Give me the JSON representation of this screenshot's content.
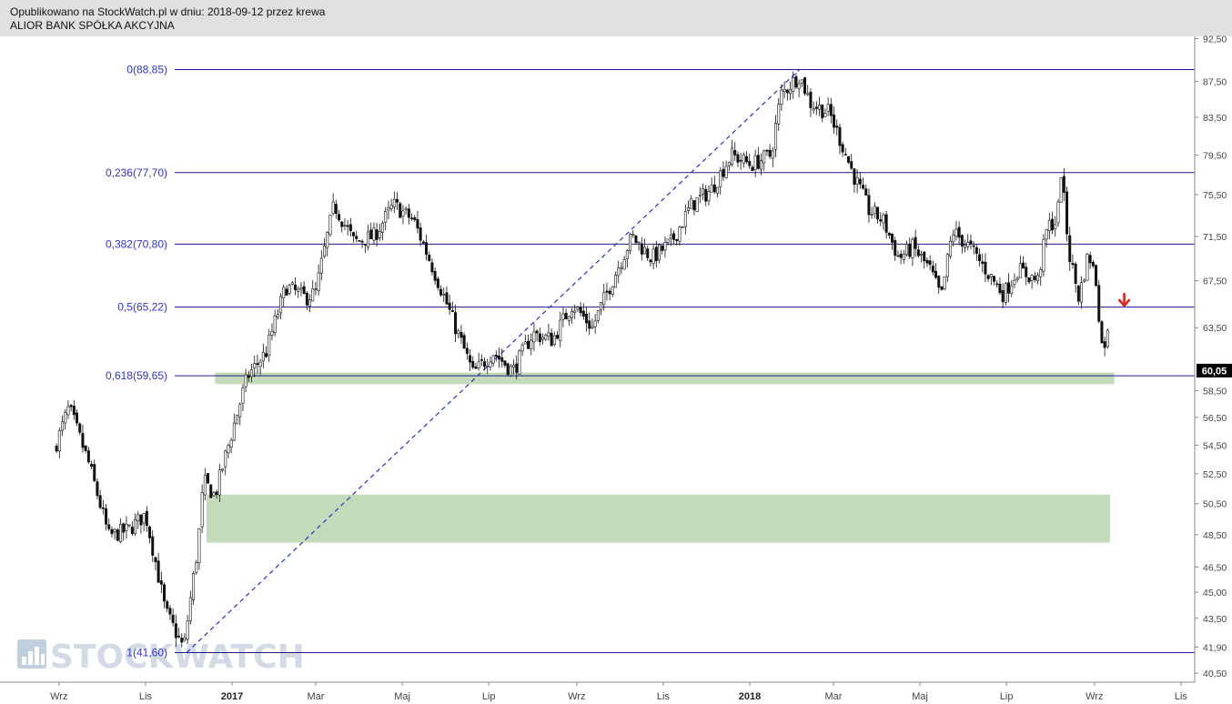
{
  "header": {
    "line1": "Opublikowano na StockWatch.pl w dniu: 2018-09-12 przez krewa",
    "line2": "ALIOR BANK SPÓŁKA AKCYJNA"
  },
  "watermark": {
    "text": "STOCKWATCH",
    "icon": "bar-chart-icon"
  },
  "chart_data": {
    "type": "candlestick",
    "y_axis": {
      "ticks": [
        "92,50",
        "87,50",
        "83,50",
        "79,50",
        "75,50",
        "71,50",
        "67,50",
        "63,50",
        "58,50",
        "56,50",
        "54,50",
        "52,50",
        "50,50",
        "48,50",
        "46,50",
        "45,00",
        "43,50",
        "41,90",
        "40,50"
      ],
      "tick_values": [
        92.5,
        87.5,
        83.5,
        79.5,
        75.5,
        71.5,
        67.5,
        63.5,
        58.5,
        56.5,
        54.5,
        52.5,
        50.5,
        48.5,
        46.5,
        45.0,
        43.5,
        41.9,
        40.5
      ],
      "scale": "log"
    },
    "x_axis": {
      "ticks": [
        "Wrz",
        "Lis",
        "2017",
        "Mar",
        "Maj",
        "Lip",
        "Wrz",
        "Lis",
        "2018",
        "Mar",
        "Maj",
        "Lip",
        "Wrz",
        "Lis"
      ],
      "bold_ticks": [
        "2017",
        "2018"
      ],
      "range": [
        "2016-09",
        "2018-11"
      ]
    },
    "last_price": {
      "label": "60,05",
      "value": 60.05,
      "color": "#000000"
    },
    "fibonacci": [
      {
        "label": "0(88,85)",
        "value": 88.85
      },
      {
        "label": "0,236(77,70)",
        "value": 77.7
      },
      {
        "label": "0,382(70,80)",
        "value": 70.8
      },
      {
        "label": "0,5(65,22)",
        "value": 65.22
      },
      {
        "label": "0,618(59,65)",
        "value": 59.65
      },
      {
        "label": "1(41,60)",
        "value": 41.6
      }
    ],
    "fib_color": "#1a1a8c",
    "trend_line": {
      "from": {
        "date": "2016-11-30",
        "value": 41.6
      },
      "to": {
        "date": "2018-02-05",
        "value": 88.85
      },
      "style": "dashed",
      "color": "#2233cc"
    },
    "zones": [
      {
        "from_date": "2016-12-20",
        "to_date": "2018-09-15",
        "low": 59.0,
        "high": 59.9,
        "color": "#a9cc9b"
      },
      {
        "from_date": "2016-12-14",
        "to_date": "2018-09-12",
        "low": 48.0,
        "high": 51.1,
        "color": "#a9cc9b"
      }
    ],
    "signal_arrow": {
      "direction": "down",
      "color": "#e0201b"
    },
    "price_path": [
      [
        "2016-08-29",
        54.3
      ],
      [
        "2016-09-08",
        57.2
      ],
      [
        "2016-09-22",
        53.2
      ],
      [
        "2016-10-06",
        48.4
      ],
      [
        "2016-10-20",
        48.8
      ],
      [
        "2016-11-01",
        49.8
      ],
      [
        "2016-11-15",
        43.9
      ],
      [
        "2016-11-28",
        41.8
      ],
      [
        "2016-12-08",
        47.8
      ],
      [
        "2016-12-12",
        52.0
      ],
      [
        "2016-12-20",
        51.0
      ],
      [
        "2016-12-30",
        54.7
      ],
      [
        "2017-01-12",
        59.6
      ],
      [
        "2017-01-25",
        61.5
      ],
      [
        "2017-02-08",
        67.0
      ],
      [
        "2017-02-22",
        66.0
      ],
      [
        "2017-03-01",
        66.5
      ],
      [
        "2017-03-14",
        74.5
      ],
      [
        "2017-03-28",
        71.0
      ],
      [
        "2017-04-11",
        71.5
      ],
      [
        "2017-04-25",
        74.5
      ],
      [
        "2017-05-09",
        73.0
      ],
      [
        "2017-05-23",
        68.5
      ],
      [
        "2017-06-06",
        64.0
      ],
      [
        "2017-06-20",
        59.8
      ],
      [
        "2017-07-04",
        61.5
      ],
      [
        "2017-07-18",
        60.0
      ],
      [
        "2017-08-01",
        63.0
      ],
      [
        "2017-08-15",
        62.5
      ],
      [
        "2017-08-29",
        65.5
      ],
      [
        "2017-09-12",
        63.5
      ],
      [
        "2017-09-26",
        67.5
      ],
      [
        "2017-10-10",
        71.5
      ],
      [
        "2017-10-24",
        69.5
      ],
      [
        "2017-11-07",
        71.0
      ],
      [
        "2017-11-21",
        74.5
      ],
      [
        "2017-12-05",
        76.0
      ],
      [
        "2017-12-19",
        79.5
      ],
      [
        "2018-01-02",
        78.5
      ],
      [
        "2018-01-16",
        79.5
      ],
      [
        "2018-01-23",
        86.0
      ],
      [
        "2018-02-05",
        88.2
      ],
      [
        "2018-02-13",
        85.0
      ],
      [
        "2018-02-26",
        84.0
      ],
      [
        "2018-03-06",
        81.0
      ],
      [
        "2018-03-15",
        77.5
      ],
      [
        "2018-03-26",
        74.0
      ],
      [
        "2018-04-05",
        73.0
      ],
      [
        "2018-04-16",
        69.5
      ],
      [
        "2018-04-26",
        70.5
      ],
      [
        "2018-05-08",
        68.5
      ],
      [
        "2018-05-16",
        66.0
      ],
      [
        "2018-05-24",
        72.0
      ],
      [
        "2018-06-05",
        70.5
      ],
      [
        "2018-06-19",
        68.0
      ],
      [
        "2018-06-29",
        66.3
      ],
      [
        "2018-07-09",
        68.5
      ],
      [
        "2018-07-23",
        67.5
      ],
      [
        "2018-07-30",
        72.5
      ],
      [
        "2018-08-06",
        73.0
      ],
      [
        "2018-08-08",
        78.5
      ],
      [
        "2018-08-14",
        70.0
      ],
      [
        "2018-08-21",
        66.0
      ],
      [
        "2018-08-28",
        70.0
      ],
      [
        "2018-09-03",
        67.0
      ],
      [
        "2018-09-05",
        63.0
      ],
      [
        "2018-09-07",
        61.5
      ],
      [
        "2018-09-10",
        63.5
      ],
      [
        "2018-09-12",
        60.05
      ]
    ]
  }
}
